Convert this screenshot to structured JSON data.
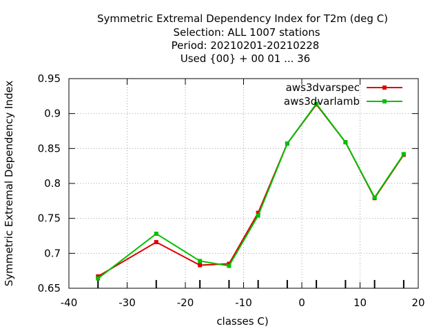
{
  "chart_data": {
    "type": "line",
    "title_lines": [
      "Symmetric Extremal Dependency Index  for T2m (deg C)",
      "Selection: ALL   1007 stations",
      "Period: 20210201-20210228",
      "Used {00} + 00 01 ... 36"
    ],
    "xlabel": "classes C)",
    "ylabel": "Symmetric Extremal Dependency Index",
    "xlim": [
      -40,
      20
    ],
    "ylim": [
      0.65,
      0.95
    ],
    "xticks": [
      -40,
      -30,
      -20,
      -10,
      0,
      10,
      20
    ],
    "xtick_labels": [
      "-40",
      "-30",
      "-20",
      "-10",
      "0",
      "10",
      "20"
    ],
    "yticks": [
      0.65,
      0.7,
      0.75,
      0.8,
      0.85,
      0.9,
      0.95
    ],
    "ytick_labels": [
      "0.65",
      "0.7",
      "0.75",
      "0.8",
      "0.85",
      "0.9",
      "0.95"
    ],
    "grid": true,
    "legend_position": "top-right",
    "x": [
      -35,
      -25,
      -17.5,
      -12.5,
      -7.5,
      -2.5,
      2.5,
      7.5,
      12.5,
      17.5
    ],
    "series": [
      {
        "name": "aws3dvarspec",
        "color": "#e00000",
        "values": [
          0.667,
          0.716,
          0.683,
          0.685,
          0.758,
          0.857,
          0.913,
          0.859,
          0.779,
          0.841
        ]
      },
      {
        "name": "aws3dvarlamb",
        "color": "#00c000",
        "values": [
          0.664,
          0.728,
          0.689,
          0.682,
          0.754,
          0.857,
          0.914,
          0.859,
          0.78,
          0.842
        ]
      }
    ]
  }
}
